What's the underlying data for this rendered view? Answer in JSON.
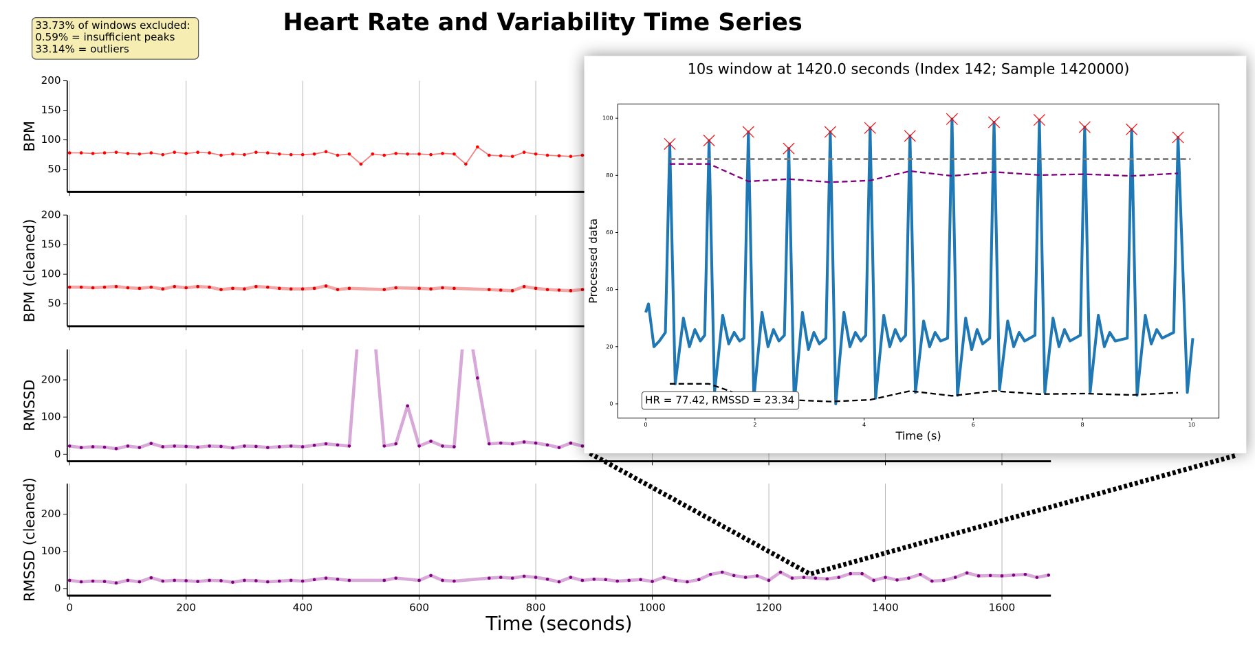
{
  "title": "Heart Rate and Variability Time Series",
  "note_lines": [
    "33.73% of windows excluded:",
    "0.59% = insufficient peaks",
    "33.14% = outliers"
  ],
  "chart_data": [
    {
      "type": "line",
      "ylabel": "BPM",
      "xlim": [
        -4,
        1684
      ],
      "xticks": [
        0,
        200,
        400,
        600,
        800,
        1000,
        1200,
        1400,
        1600
      ],
      "show_xtick_labels": false,
      "ylim": [
        12,
        200
      ],
      "yticks": [
        50,
        100,
        150,
        200
      ],
      "grid": "x",
      "line_color": "#f08080",
      "line_width": 1.5,
      "marker_color": "#ff0000",
      "x": [
        0,
        20,
        40,
        60,
        80,
        100,
        120,
        140,
        160,
        180,
        200,
        220,
        240,
        260,
        280,
        300,
        320,
        340,
        360,
        380,
        400,
        420,
        440,
        460,
        480,
        500,
        520,
        540,
        560,
        580,
        600,
        620,
        640,
        660,
        680,
        700,
        720,
        740,
        760,
        780,
        800,
        820,
        840,
        860,
        880,
        900,
        920,
        940,
        960,
        980,
        1000,
        1020,
        1040,
        1060,
        1080,
        1100,
        1120,
        1140,
        1160,
        1180,
        1200,
        1220,
        1240,
        1260,
        1280,
        1300,
        1320,
        1340,
        1360,
        1380,
        1400,
        1420,
        1440,
        1460,
        1480,
        1500,
        1520,
        1540,
        1560,
        1580,
        1600,
        1620,
        1640,
        1660,
        1680
      ],
      "values": [
        78,
        78,
        77,
        78,
        79,
        77,
        76,
        78,
        75,
        79,
        77,
        79,
        78,
        74,
        76,
        75,
        79,
        78,
        76,
        75,
        75,
        76,
        80,
        74,
        76,
        59,
        76,
        74,
        77,
        76,
        76,
        75,
        77,
        76,
        59,
        88,
        74,
        73,
        72,
        79,
        76,
        74,
        73,
        72,
        74,
        73,
        75,
        76,
        74,
        75,
        73,
        77,
        75,
        74,
        73,
        72,
        74,
        76,
        75,
        73,
        74,
        72,
        75,
        76,
        74,
        75,
        77,
        73,
        74,
        72,
        75,
        77,
        76,
        74,
        73,
        75,
        74,
        76,
        73,
        74,
        75,
        76,
        74,
        75,
        74
      ]
    },
    {
      "type": "line",
      "ylabel": "BPM (cleaned)",
      "xlim": [
        -4,
        1684
      ],
      "xticks": [
        0,
        200,
        400,
        600,
        800,
        1000,
        1200,
        1400,
        1600
      ],
      "show_xtick_labels": false,
      "ylim": [
        12,
        200
      ],
      "yticks": [
        50,
        100,
        150,
        200
      ],
      "grid": "x",
      "line_color": "#f4a6a6",
      "line_width": 4,
      "marker_color": "#e00000",
      "x": [
        0,
        20,
        40,
        60,
        80,
        100,
        120,
        140,
        160,
        180,
        200,
        220,
        240,
        260,
        280,
        300,
        320,
        340,
        360,
        380,
        400,
        420,
        440,
        460,
        480,
        540,
        560,
        600,
        620,
        640,
        660,
        720,
        740,
        760,
        780,
        800,
        820,
        840,
        860,
        880,
        900,
        920,
        940,
        960,
        980,
        1000,
        1020,
        1040,
        1060,
        1080,
        1100,
        1120,
        1140,
        1160,
        1180,
        1200,
        1220,
        1240,
        1260,
        1280,
        1300,
        1320,
        1340,
        1360,
        1380,
        1400,
        1420,
        1440,
        1460,
        1480,
        1500,
        1520,
        1540,
        1560,
        1580,
        1600,
        1620,
        1640,
        1660,
        1680
      ],
      "values": [
        78,
        78,
        77,
        78,
        79,
        77,
        76,
        78,
        75,
        79,
        77,
        79,
        78,
        74,
        76,
        75,
        79,
        78,
        76,
        75,
        75,
        76,
        80,
        74,
        76,
        74,
        77,
        76,
        75,
        77,
        76,
        74,
        73,
        72,
        79,
        76,
        74,
        73,
        72,
        74,
        73,
        75,
        76,
        74,
        75,
        73,
        77,
        75,
        74,
        73,
        72,
        74,
        76,
        75,
        73,
        74,
        72,
        75,
        76,
        74,
        75,
        77,
        73,
        74,
        72,
        75,
        77,
        76,
        74,
        73,
        75,
        74,
        76,
        73,
        74,
        75,
        76,
        74,
        75,
        74
      ]
    },
    {
      "type": "line",
      "ylabel": "RMSSD",
      "xlim": [
        -4,
        1684
      ],
      "xticks": [
        0,
        200,
        400,
        600,
        800,
        1000,
        1200,
        1400,
        1600
      ],
      "show_xtick_labels": false,
      "ylim": [
        -19,
        282
      ],
      "yticks": [
        0,
        100,
        200
      ],
      "grid": "x",
      "line_color": "#d8a8d8",
      "line_width": 4,
      "marker_color": "#800080",
      "x": [
        0,
        20,
        40,
        60,
        80,
        100,
        120,
        140,
        160,
        180,
        200,
        220,
        240,
        260,
        280,
        300,
        320,
        340,
        360,
        380,
        400,
        420,
        440,
        460,
        480,
        500,
        520,
        540,
        560,
        580,
        600,
        620,
        640,
        660,
        680,
        700,
        720,
        740,
        760,
        780,
        800,
        820,
        840,
        860,
        880,
        900,
        920,
        940,
        960,
        980,
        1000,
        1020,
        1040,
        1060,
        1080,
        1100,
        1120,
        1140,
        1160,
        1180,
        1200,
        1220,
        1240,
        1260,
        1280,
        1300,
        1320,
        1340,
        1360,
        1380,
        1400,
        1420,
        1440,
        1460,
        1480,
        1500,
        1520,
        1540,
        1560,
        1580,
        1600,
        1620,
        1640,
        1660,
        1680
      ],
      "values": [
        22,
        18,
        20,
        19,
        15,
        22,
        18,
        29,
        20,
        22,
        21,
        19,
        22,
        21,
        17,
        22,
        21,
        18,
        20,
        22,
        20,
        24,
        28,
        25,
        22,
        420,
        380,
        22,
        28,
        130,
        22,
        35,
        22,
        20,
        400,
        205,
        28,
        30,
        28,
        33,
        30,
        25,
        18,
        30,
        22,
        25,
        24,
        20,
        22,
        24,
        19,
        30,
        22,
        18,
        24,
        38,
        44,
        35,
        30,
        34,
        22,
        44,
        28,
        30,
        28,
        26,
        30,
        40,
        40,
        22,
        30,
        23,
        28,
        38,
        20,
        22,
        30,
        42,
        34,
        35,
        34,
        36,
        38,
        30,
        36
      ]
    },
    {
      "type": "line",
      "ylabel": "RMSSD (cleaned)",
      "xlabel": "Time (seconds)",
      "xlim": [
        -4,
        1684
      ],
      "xticks": [
        0,
        200,
        400,
        600,
        800,
        1000,
        1200,
        1400,
        1600
      ],
      "show_xtick_labels": true,
      "ylim": [
        -19,
        282
      ],
      "yticks": [
        0,
        100,
        200
      ],
      "grid": "x",
      "line_color": "#d8a8d8",
      "line_width": 4,
      "marker_color": "#800080",
      "x": [
        0,
        20,
        40,
        60,
        80,
        100,
        120,
        140,
        160,
        180,
        200,
        220,
        240,
        260,
        280,
        300,
        320,
        340,
        360,
        380,
        400,
        420,
        440,
        460,
        480,
        540,
        560,
        600,
        620,
        640,
        660,
        720,
        740,
        760,
        780,
        800,
        820,
        840,
        860,
        880,
        900,
        920,
        940,
        960,
        980,
        1000,
        1020,
        1040,
        1060,
        1080,
        1100,
        1120,
        1140,
        1160,
        1180,
        1200,
        1220,
        1240,
        1260,
        1280,
        1300,
        1320,
        1340,
        1360,
        1380,
        1400,
        1420,
        1440,
        1460,
        1480,
        1500,
        1520,
        1540,
        1560,
        1580,
        1600,
        1620,
        1640,
        1660,
        1680
      ],
      "values": [
        22,
        18,
        20,
        19,
        15,
        22,
        18,
        29,
        20,
        22,
        21,
        19,
        22,
        21,
        17,
        22,
        21,
        18,
        20,
        22,
        20,
        24,
        28,
        25,
        22,
        22,
        28,
        22,
        35,
        22,
        20,
        28,
        30,
        28,
        33,
        30,
        25,
        18,
        30,
        22,
        25,
        24,
        20,
        22,
        24,
        19,
        30,
        22,
        18,
        24,
        38,
        44,
        35,
        30,
        34,
        22,
        44,
        28,
        30,
        28,
        26,
        30,
        40,
        40,
        22,
        30,
        23,
        28,
        38,
        20,
        22,
        30,
        42,
        34,
        35,
        34,
        36,
        38,
        30,
        36
      ]
    },
    {
      "type": "line",
      "title": "10s window at 1420.0 seconds (Index 142; Sample 1420000)",
      "xlabel": "Time (s)",
      "ylabel": "Processed data",
      "annotation": "HR = 77.42, RMSSD = 23.34",
      "xlim": [
        -0.51,
        10.5
      ],
      "xticks": [
        0,
        2,
        4,
        6,
        8,
        10
      ],
      "show_xtick_labels": true,
      "ylim": [
        -5,
        105
      ],
      "yticks": [
        0,
        20,
        40,
        60,
        80,
        100
      ],
      "grid": "none",
      "series": [
        {
          "line_color": "#1f77b4",
          "line_width": 3.5,
          "x": [
            0.0,
            0.05,
            0.15,
            0.25,
            0.36,
            0.36,
            0.44,
            0.54,
            0.69,
            0.8,
            0.9,
            1.0,
            1.08,
            1.16,
            1.26,
            1.41,
            1.52,
            1.62,
            1.72,
            1.8,
            1.88,
            1.98,
            2.13,
            2.24,
            2.34,
            2.44,
            2.54,
            2.62,
            2.72,
            2.87,
            2.98,
            3.08,
            3.18,
            3.3,
            3.38,
            3.48,
            3.63,
            3.74,
            3.84,
            3.94,
            4.03,
            4.11,
            4.21,
            4.36,
            4.47,
            4.57,
            4.67,
            4.76,
            4.84,
            4.94,
            5.09,
            5.2,
            5.3,
            5.4,
            5.53,
            5.61,
            5.71,
            5.86,
            5.97,
            6.07,
            6.17,
            6.3,
            6.38,
            6.48,
            6.63,
            6.74,
            6.84,
            6.94,
            7.13,
            7.21,
            7.31,
            7.46,
            7.57,
            7.67,
            7.77,
            7.96,
            8.04,
            8.14,
            8.29,
            8.4,
            8.5,
            8.6,
            8.82,
            8.9,
            9.0,
            9.15,
            9.26,
            9.36,
            9.46,
            9.67,
            9.75,
            9.92,
            10.02
          ],
          "values": [
            32,
            35,
            20,
            22,
            25,
            25,
            91.0,
            7,
            30,
            20,
            26,
            22,
            24,
            92.2,
            4,
            31,
            21,
            25,
            22,
            23,
            95.2,
            2,
            32,
            20,
            26,
            22,
            24,
            89.4,
            0,
            32,
            19,
            25,
            21,
            23,
            95.2,
            0,
            32,
            20,
            25,
            22,
            24,
            96.6,
            2,
            31,
            20,
            26,
            22,
            24,
            93.8,
            4,
            29,
            20,
            25,
            22,
            23,
            99.7,
            3,
            30,
            19,
            26,
            21,
            23,
            98.6,
            5,
            29,
            20,
            25,
            22,
            24,
            99.4,
            4,
            30,
            20,
            26,
            22,
            24,
            96.9,
            4,
            31,
            20,
            25,
            22,
            23,
            96.1,
            3,
            31,
            21,
            26,
            23,
            25,
            93.3,
            4,
            23
          ]
        },
        {
          "marker": "x",
          "marker_color": "#ff0000",
          "x": [
            0.44,
            1.16,
            1.88,
            2.62,
            3.38,
            4.11,
            4.84,
            5.61,
            6.38,
            7.21,
            8.04,
            8.9,
            9.75
          ],
          "values": [
            91.0,
            92.2,
            95.2,
            89.4,
            95.2,
            96.6,
            93.8,
            99.7,
            98.6,
            99.4,
            96.9,
            96.1,
            93.3
          ]
        },
        {
          "line_color": "#808080",
          "line_width": 2.5,
          "dash": true,
          "x": [
            0.44,
            9.98
          ],
          "values": [
            85.7,
            85.7
          ]
        },
        {
          "line_color": "#800080",
          "line_width": 2,
          "dash": true,
          "x": [
            0.44,
            1.16,
            1.88,
            2.62,
            3.38,
            4.11,
            4.84,
            5.61,
            6.38,
            7.21,
            8.04,
            8.9,
            9.75
          ],
          "values": [
            84.0,
            84.0,
            77.9,
            78.7,
            77.6,
            78.2,
            81.5,
            79.8,
            81.2,
            80.1,
            80.4,
            79.8,
            80.7
          ]
        },
        {
          "line_color": "#000000",
          "line_width": 2,
          "dash": true,
          "x": [
            0.44,
            1.16,
            1.88,
            2.62,
            3.38,
            4.11,
            4.84,
            5.61,
            6.38,
            7.21,
            8.04,
            8.9,
            9.75
          ],
          "values": [
            7.0,
            7.0,
            2.2,
            1.4,
            0.8,
            1.4,
            4.5,
            2.8,
            4.5,
            3.4,
            3.6,
            3.1,
            3.9
          ]
        }
      ]
    }
  ]
}
